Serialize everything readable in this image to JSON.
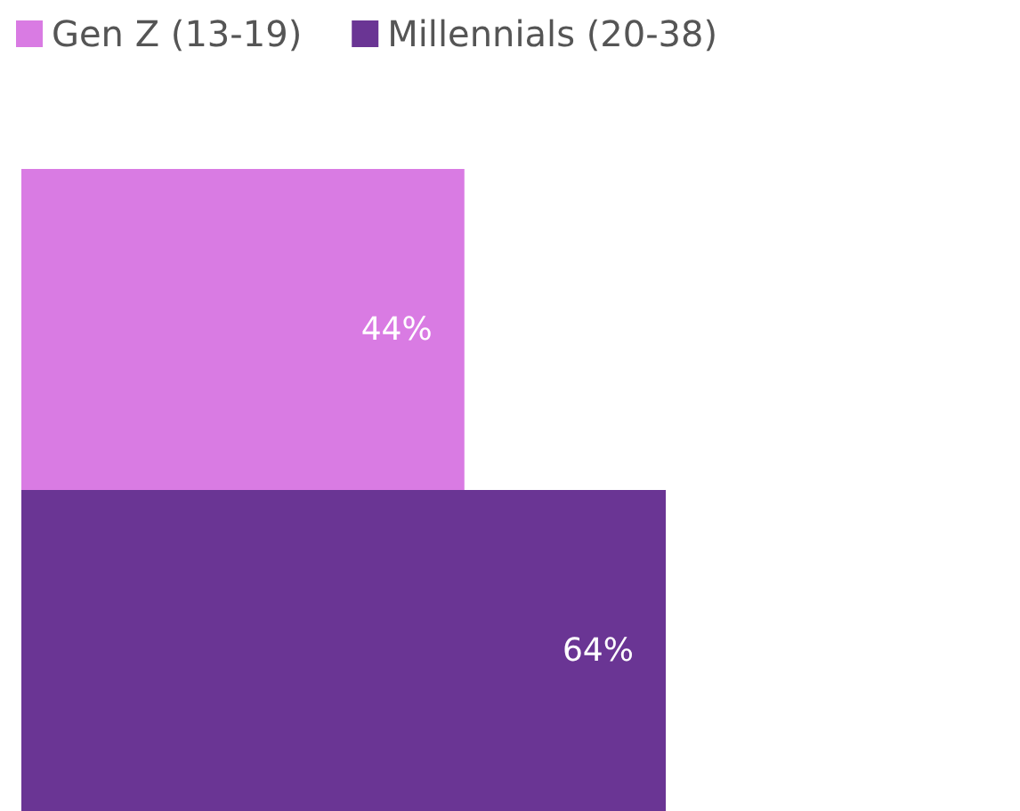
{
  "chart_data": {
    "type": "bar",
    "orientation": "horizontal",
    "categories": [
      null
    ],
    "series": [
      {
        "name": "Gen Z (13-19)",
        "color": "#d97be3",
        "values": [
          44
        ],
        "value_labels": [
          "44%"
        ]
      },
      {
        "name": "Millennials (20-38)",
        "color": "#6a3594",
        "values": [
          64
        ],
        "value_labels": [
          "64%"
        ]
      }
    ],
    "legend": "top left",
    "grid": false
  }
}
